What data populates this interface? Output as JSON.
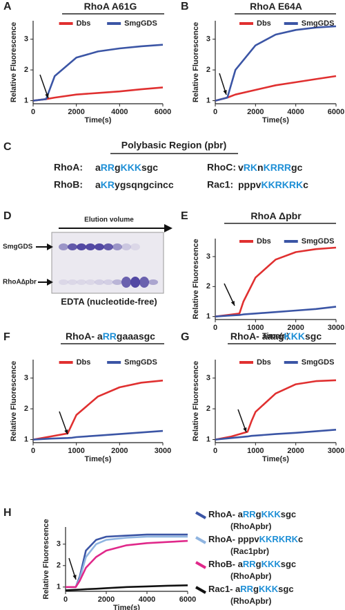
{
  "chart_data": [
    {
      "panel": "A",
      "type": "line",
      "title": [
        {
          "text": "RhoA A61G"
        }
      ],
      "xlabel": "Time(s)",
      "ylabel": "Relative Fluorescence",
      "legend": "top",
      "x": [
        0,
        600,
        1000,
        2000,
        3000,
        4000,
        5000,
        6000
      ],
      "xlim": [
        0,
        6000
      ],
      "xticks": [
        0,
        2000,
        4000,
        6000
      ],
      "ylim": [
        0.9,
        3.6
      ],
      "yticks": [
        1,
        2,
        3
      ],
      "series": [
        {
          "name": [
            {
              "text": "Dbs"
            }
          ],
          "color": "#e03030",
          "values": [
            1.0,
            1.05,
            1.1,
            1.2,
            1.25,
            1.3,
            1.37,
            1.43
          ]
        },
        {
          "name": [
            {
              "text": "SmgGDS"
            }
          ],
          "color": "#3b55a5",
          "values": [
            1.0,
            1.05,
            1.8,
            2.4,
            2.6,
            2.7,
            2.77,
            2.82
          ]
        }
      ]
    },
    {
      "panel": "B",
      "type": "line",
      "title": [
        {
          "text": "RhoA E64A"
        }
      ],
      "xlabel": "Time(s)",
      "ylabel": "Relative Fluorescence",
      "legend": "top",
      "x": [
        0,
        600,
        1000,
        2000,
        3000,
        4000,
        5000,
        6000
      ],
      "xlim": [
        0,
        6000
      ],
      "xticks": [
        0,
        2000,
        4000,
        6000
      ],
      "ylim": [
        0.9,
        3.6
      ],
      "yticks": [
        1,
        2,
        3
      ],
      "series": [
        {
          "name": [
            {
              "text": "Dbs"
            }
          ],
          "color": "#e03030",
          "values": [
            1.0,
            1.1,
            1.2,
            1.35,
            1.5,
            1.6,
            1.7,
            1.8
          ]
        },
        {
          "name": [
            {
              "text": "SmgGDS"
            }
          ],
          "color": "#3b55a5",
          "values": [
            1.0,
            1.1,
            2.0,
            2.8,
            3.15,
            3.3,
            3.38,
            3.42
          ]
        }
      ]
    },
    {
      "panel": "E",
      "type": "line",
      "title": [
        {
          "text": "RhoA Δpbr"
        }
      ],
      "xlabel": "Time(s)",
      "ylabel": "Relative Fluorescence",
      "legend": "top",
      "x": [
        0,
        300,
        600,
        700,
        1000,
        1500,
        2000,
        2500,
        3000
      ],
      "xlim": [
        0,
        3000
      ],
      "xticks": [
        0,
        1000,
        2000,
        3000
      ],
      "ylim": [
        0.9,
        3.6
      ],
      "yticks": [
        1,
        2,
        3
      ],
      "series": [
        {
          "name": [
            {
              "text": "Dbs"
            }
          ],
          "color": "#e03030",
          "values": [
            1.0,
            1.05,
            1.1,
            1.5,
            2.3,
            2.9,
            3.15,
            3.25,
            3.3
          ]
        },
        {
          "name": [
            {
              "text": "SmgGDS"
            }
          ],
          "color": "#3b55a5",
          "values": [
            1.0,
            1.03,
            1.05,
            1.07,
            1.1,
            1.15,
            1.2,
            1.25,
            1.33
          ]
        }
      ]
    },
    {
      "panel": "F",
      "type": "line",
      "title": [
        {
          "text": "RhoA- a"
        },
        {
          "text": "RR",
          "highlight": true
        },
        {
          "text": "gaaasgc"
        }
      ],
      "xlabel": "Time(s)",
      "ylabel": "Relative Fluorescence",
      "legend": "top",
      "x": [
        0,
        400,
        800,
        900,
        1000,
        1500,
        2000,
        2500,
        3000
      ],
      "xlim": [
        0,
        3000
      ],
      "xticks": [
        0,
        1000,
        2000,
        3000
      ],
      "ylim": [
        0.9,
        3.6
      ],
      "yticks": [
        1,
        2,
        3
      ],
      "series": [
        {
          "name": [
            {
              "text": "Dbs"
            }
          ],
          "color": "#e03030",
          "values": [
            1.0,
            1.1,
            1.2,
            1.5,
            1.8,
            2.4,
            2.7,
            2.85,
            2.92
          ]
        },
        {
          "name": [
            {
              "text": "SmgGDS"
            }
          ],
          "color": "#3b55a5",
          "values": [
            1.0,
            1.03,
            1.05,
            1.06,
            1.08,
            1.13,
            1.18,
            1.23,
            1.28
          ]
        }
      ]
    },
    {
      "panel": "G",
      "type": "line",
      "title": [
        {
          "text": "RhoA- aaag"
        },
        {
          "text": "KKK",
          "highlight": true
        },
        {
          "text": "sgc"
        }
      ],
      "xlabel": "Time(s)",
      "ylabel": "Relative Fluorescence",
      "legend": "top",
      "x": [
        0,
        400,
        800,
        900,
        1000,
        1500,
        2000,
        2500,
        3000
      ],
      "xlim": [
        0,
        3000
      ],
      "xticks": [
        0,
        1000,
        2000,
        3000
      ],
      "ylim": [
        0.9,
        3.6
      ],
      "yticks": [
        1,
        2,
        3
      ],
      "series": [
        {
          "name": [
            {
              "text": "Dbs"
            }
          ],
          "color": "#e03030",
          "values": [
            1.0,
            1.1,
            1.25,
            1.6,
            1.9,
            2.5,
            2.8,
            2.9,
            2.93
          ]
        },
        {
          "name": [
            {
              "text": "SmgGDS"
            }
          ],
          "color": "#3b55a5",
          "values": [
            1.0,
            1.05,
            1.1,
            1.12,
            1.13,
            1.18,
            1.22,
            1.27,
            1.32
          ]
        }
      ]
    },
    {
      "panel": "H",
      "type": "line",
      "xlabel": "Time(s)",
      "ylabel": "Relative Fluorescence",
      "legend": "right",
      "x": [
        0,
        500,
        700,
        1000,
        1500,
        2000,
        3000,
        4000,
        5000,
        6000
      ],
      "xlim": [
        0,
        6000
      ],
      "xticks": [
        0,
        2000,
        4000,
        6000
      ],
      "ylim": [
        0.8,
        3.8
      ],
      "yticks": [
        1,
        2,
        3
      ],
      "series": [
        {
          "name": [
            {
              "text": "RhoA- a"
            },
            {
              "text": "RR",
              "highlight": true
            },
            {
              "text": "g"
            },
            {
              "text": "KKK",
              "highlight": true
            },
            {
              "text": "sgc"
            }
          ],
          "sub": "(RhoApbr)",
          "color": "#3b55a5",
          "values": [
            1.0,
            1.0,
            1.5,
            2.7,
            3.2,
            3.35,
            3.4,
            3.45,
            3.45,
            3.45
          ]
        },
        {
          "name": [
            {
              "text": "RhoA- pppv"
            },
            {
              "text": "KKRKRK",
              "highlight": true
            },
            {
              "text": "c"
            }
          ],
          "sub": "(Rac1pbr)",
          "color": "#8fb4e0",
          "values": [
            1.0,
            1.0,
            1.4,
            2.4,
            3.0,
            3.2,
            3.3,
            3.35,
            3.35,
            3.35
          ]
        },
        {
          "name": [
            {
              "text": "RhoB- a"
            },
            {
              "text": "RR",
              "highlight": true
            },
            {
              "text": "g"
            },
            {
              "text": "KKK",
              "highlight": true
            },
            {
              "text": "sgc"
            }
          ],
          "sub": "(RhoApbr)",
          "color": "#e0288a",
          "values": [
            1.0,
            1.0,
            1.3,
            1.9,
            2.4,
            2.7,
            2.95,
            3.05,
            3.1,
            3.15
          ]
        },
        {
          "name": [
            {
              "text": "Rac1- a"
            },
            {
              "text": "RR",
              "highlight": true
            },
            {
              "text": "g"
            },
            {
              "text": "KKK",
              "highlight": true
            },
            {
              "text": "sgc"
            }
          ],
          "sub": "(RhoApbr)",
          "color": "#111111",
          "values": [
            0.85,
            0.87,
            0.88,
            0.9,
            0.92,
            0.95,
            1.0,
            1.03,
            1.06,
            1.08
          ]
        }
      ]
    }
  ],
  "pbr": {
    "panel": "C",
    "title": "Polybasic Region (pbr)",
    "entries": [
      {
        "label": "RhoA:",
        "parts": [
          {
            "text": "a"
          },
          {
            "text": "RR",
            "highlight": true
          },
          {
            "text": "g"
          },
          {
            "text": "KKK",
            "highlight": true
          },
          {
            "text": "sgc"
          }
        ]
      },
      {
        "label": "RhoC:",
        "parts": [
          {
            "text": "v"
          },
          {
            "text": "RK",
            "highlight": true
          },
          {
            "text": "n"
          },
          {
            "text": "KRRR",
            "highlight": true
          },
          {
            "text": "gc"
          }
        ]
      },
      {
        "label": "RhoB:",
        "parts": [
          {
            "text": "a"
          },
          {
            "text": "KR",
            "highlight": true
          },
          {
            "text": "ygsqngcincc"
          }
        ]
      },
      {
        "label": "Rac1:",
        "parts": [
          {
            "text": "pppv"
          },
          {
            "text": "KKRKRK",
            "highlight": true
          },
          {
            "text": "c"
          }
        ]
      }
    ]
  },
  "gel": {
    "panel": "D",
    "axis_label": "Elution volume",
    "bands": [
      "SmgGDS",
      "RhoA∆pbr"
    ],
    "caption": "EDTA (nucleotide-free)"
  }
}
